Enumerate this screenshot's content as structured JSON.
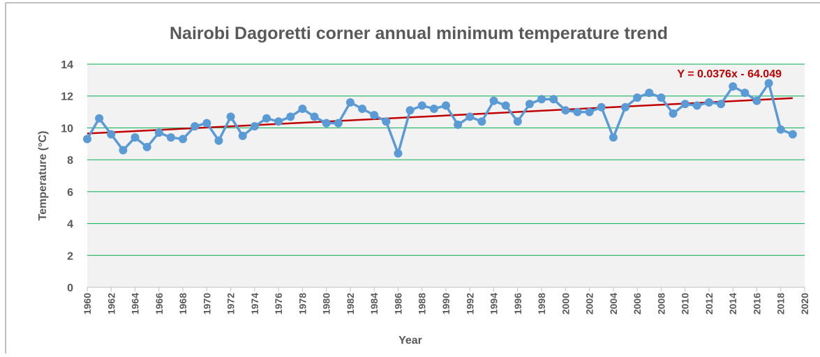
{
  "chart_data": {
    "type": "line",
    "title": "Nairobi Dagoretti corner annual minimum temperature trend",
    "x_label": "Year",
    "y_label": "Temperature (°C)",
    "x": [
      1960,
      1961,
      1962,
      1963,
      1964,
      1965,
      1966,
      1967,
      1968,
      1969,
      1970,
      1971,
      1972,
      1973,
      1974,
      1975,
      1976,
      1977,
      1978,
      1979,
      1980,
      1981,
      1982,
      1983,
      1984,
      1985,
      1986,
      1987,
      1988,
      1989,
      1990,
      1991,
      1992,
      1993,
      1994,
      1995,
      1996,
      1997,
      1998,
      1999,
      2000,
      2001,
      2002,
      2003,
      2004,
      2005,
      2006,
      2007,
      2008,
      2009,
      2010,
      2011,
      2012,
      2013,
      2014,
      2015,
      2016,
      2017,
      2018,
      2019
    ],
    "series": [
      {
        "name": "Annual minimum temperature",
        "color": "#5b9bd5",
        "values": [
          9.3,
          10.6,
          9.6,
          8.6,
          9.4,
          8.8,
          9.7,
          9.4,
          9.3,
          10.1,
          10.3,
          9.2,
          10.7,
          9.5,
          10.1,
          10.6,
          10.4,
          10.7,
          11.2,
          10.7,
          10.3,
          10.3,
          11.6,
          11.2,
          10.8,
          10.4,
          8.4,
          11.1,
          11.4,
          11.2,
          11.4,
          10.2,
          10.7,
          10.4,
          11.7,
          11.4,
          10.4,
          11.5,
          11.8,
          11.8,
          11.1,
          11.0,
          11.0,
          11.3,
          9.4,
          11.3,
          11.9,
          12.2,
          11.9,
          10.9,
          11.5,
          11.4,
          11.6,
          11.5,
          12.6,
          12.2,
          11.7,
          12.8,
          9.9,
          9.6
        ]
      }
    ],
    "trendline": {
      "label": "Y = 0.0376x - 64.049",
      "slope": 0.0376,
      "intercept": -64.049,
      "color": "#c00000"
    },
    "xlim": [
      1960,
      2020
    ],
    "xticks": [
      1960,
      1962,
      1964,
      1966,
      1968,
      1970,
      1972,
      1974,
      1976,
      1978,
      1980,
      1982,
      1984,
      1986,
      1988,
      1990,
      1992,
      1994,
      1996,
      1998,
      2000,
      2002,
      2004,
      2006,
      2008,
      2010,
      2012,
      2014,
      2016,
      2018,
      2020
    ],
    "ylim": [
      0,
      14
    ],
    "yticks": [
      0,
      2,
      4,
      6,
      8,
      10,
      12,
      14
    ],
    "grid": true,
    "grid_color": "#00b050",
    "plot_background": "#f2f2f2"
  }
}
